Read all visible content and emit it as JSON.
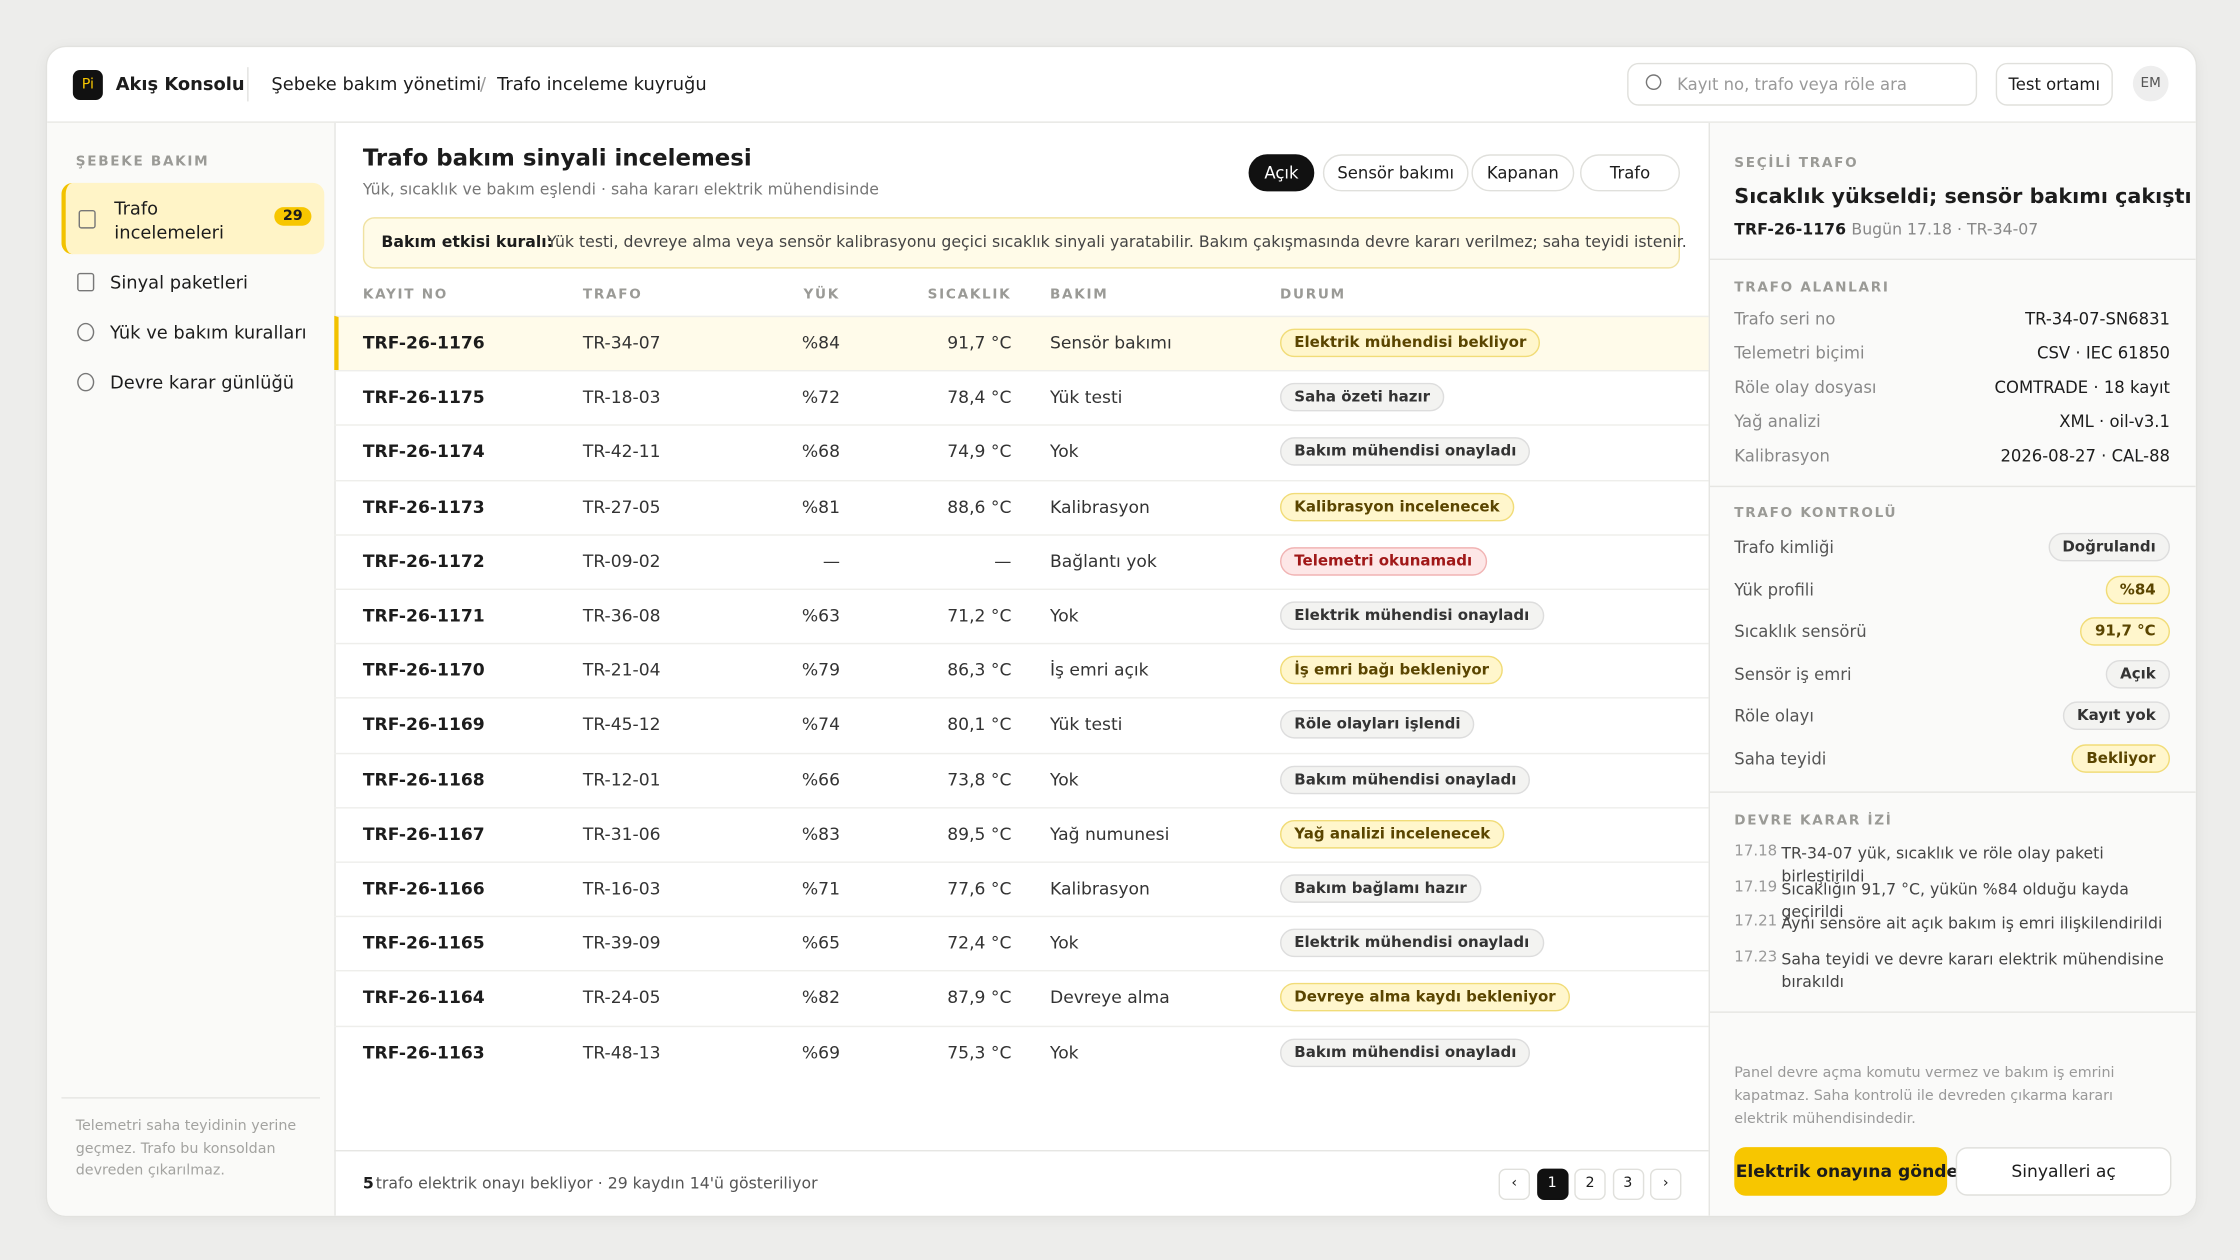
{
  "topbar": {
    "logo": "Pi",
    "brand": "Akış Konsolu",
    "breadcrumb": [
      "Şebeke bakım yönetimi",
      "Trafo inceleme kuyruğu"
    ],
    "breadcrumb_separator": "/",
    "search_placeholder": "Kayıt no, trafo veya röle ara",
    "environment": "Test ortamı",
    "avatar": "EM"
  },
  "sidebar": {
    "section": "ŞEBEKE BAKIM",
    "items": [
      {
        "label": "Trafo incelemeleri",
        "badge": 29,
        "active": true
      },
      {
        "label": "Sinyal paketleri"
      },
      {
        "label": "Yük ve bakım kuralları"
      },
      {
        "label": "Devre karar günlüğü"
      }
    ],
    "footnote": "Telemetri saha teyidinin yerine geçmez. Trafo bu konsoldan devreden çıkarılmaz."
  },
  "main": {
    "title": "Trafo bakım sinyali incelemesi",
    "subtitle": "Yük, sıcaklık ve bakım eşlendi · saha kararı elektrik mühendisinde",
    "filters": [
      "Açık",
      "Sensör bakımı",
      "Kapanan",
      "Trafo"
    ],
    "rule_label": "Bakım etkisi kuralı:",
    "rule_text": "Yük testi, devreye alma veya sensör kalibrasyonu geçici sıcaklık sinyali yaratabilir. Bakım çakışmasında devre kararı verilmez; saha teyidi istenir.",
    "table": {
      "columns": [
        "KAYIT NO",
        "TRAFO",
        "YÜK",
        "SICAKLIK",
        "BAKIM",
        "DURUM"
      ],
      "rows": [
        [
          "TRF-26-1176",
          "TR-34-07",
          "%84",
          "91,7 °C",
          "Sensör bakımı",
          "Elektrik mühendisi bekliyor"
        ],
        [
          "TRF-26-1175",
          "TR-18-03",
          "%72",
          "78,4 °C",
          "Yük testi",
          "Saha özeti hazır"
        ],
        [
          "TRF-26-1174",
          "TR-42-11",
          "%68",
          "74,9 °C",
          "Yok",
          "Bakım mühendisi onayladı"
        ],
        [
          "TRF-26-1173",
          "TR-27-05",
          "%81",
          "88,6 °C",
          "Kalibrasyon",
          "Kalibrasyon incelenecek"
        ],
        [
          "TRF-26-1172",
          "TR-09-02",
          "—",
          "—",
          "Bağlantı yok",
          "Telemetri okunamadı"
        ],
        [
          "TRF-26-1171",
          "TR-36-08",
          "%63",
          "71,2 °C",
          "Yok",
          "Elektrik mühendisi onayladı"
        ],
        [
          "TRF-26-1170",
          "TR-21-04",
          "%79",
          "86,3 °C",
          "İş emri açık",
          "İş emri bağı bekleniyor"
        ],
        [
          "TRF-26-1169",
          "TR-45-12",
          "%74",
          "80,1 °C",
          "Yük testi",
          "Röle olayları işlendi"
        ],
        [
          "TRF-26-1168",
          "TR-12-01",
          "%66",
          "73,8 °C",
          "Yok",
          "Bakım mühendisi onayladı"
        ],
        [
          "TRF-26-1167",
          "TR-31-06",
          "%83",
          "89,5 °C",
          "Yağ numunesi",
          "Yağ analizi incelenecek"
        ],
        [
          "TRF-26-1166",
          "TR-16-03",
          "%71",
          "77,6 °C",
          "Kalibrasyon",
          "Bakım bağlamı hazır"
        ],
        [
          "TRF-26-1165",
          "TR-39-09",
          "%65",
          "72,4 °C",
          "Yok",
          "Elektrik mühendisi onayladı"
        ],
        [
          "TRF-26-1164",
          "TR-24-05",
          "%82",
          "87,9 °C",
          "Devreye alma",
          "Devreye alma kaydı bekleniyor"
        ],
        [
          "TRF-26-1163",
          "TR-48-13",
          "%69",
          "75,3 °C",
          "Yok",
          "Bakım mühendisi onayladı"
        ]
      ],
      "tones": [
        "yellow",
        "gray",
        "gray",
        "yellow",
        "red",
        "gray",
        "yellow",
        "gray",
        "gray",
        "yellow",
        "gray",
        "gray",
        "yellow",
        "gray"
      ]
    },
    "footer_count": "5",
    "footer_text": "trafo elektrik onayı bekliyor · 29 kaydın 14'ü gösteriliyor",
    "pages": [
      "‹",
      "1",
      "2",
      "3",
      "›"
    ]
  },
  "panel": {
    "section": "SEÇİLİ TRAFO",
    "title": "Sıcaklık yükseldi; sensör bakımı çakıştı",
    "id": "TRF-26-1176",
    "meta": "Bugün 17.18 · TR-34-07",
    "fields_heading": "TRAFO ALANLARI",
    "fields": [
      [
        "Trafo seri no",
        "TR-34-07-SN6831"
      ],
      [
        "Telemetri biçimi",
        "CSV · IEC 61850"
      ],
      [
        "Röle olay dosyası",
        "COMTRADE · 18 kayıt"
      ],
      [
        "Yağ analizi",
        "XML · oil-v3.1"
      ],
      [
        "Kalibrasyon",
        "2026-08-27 · CAL-88"
      ]
    ],
    "control_heading": "TRAFO KONTROLÜ",
    "controls": [
      [
        "Trafo kimliği",
        "Doğrulandı",
        "gray"
      ],
      [
        "Yük profili",
        "%84",
        "yellow"
      ],
      [
        "Sıcaklık sensörü",
        "91,7 °C",
        "yellow"
      ],
      [
        "Sensör iş emri",
        "Açık",
        "gray"
      ],
      [
        "Röle olayı",
        "Kayıt yok",
        "gray"
      ],
      [
        "Saha teyidi",
        "Bekliyor",
        "yellow"
      ]
    ],
    "log_heading": "DEVRE KARAR İZİ",
    "log": [
      [
        "17.18",
        "TR-34-07 yük, sıcaklık ve röle olay paketi birleştirildi"
      ],
      [
        "17.19",
        "Sıcaklığın 91,7 °C, yükün %84 olduğu kayda geçirildi"
      ],
      [
        "17.21",
        "Aynı sensöre ait açık bakım iş emri ilişkilendirildi"
      ],
      [
        "17.23",
        "Saha teyidi ve devre kararı elektrik mühendisine bırakıldı"
      ]
    ],
    "note": "Panel devre açma komutu vermez ve bakım iş emrini kapatmaz. Saha kontrolü ile devreden çıkarma kararı elektrik mühendisindedir.",
    "primary_button": "Elektrik onayına gönder",
    "secondary_button": "Sinyalleri aç"
  }
}
